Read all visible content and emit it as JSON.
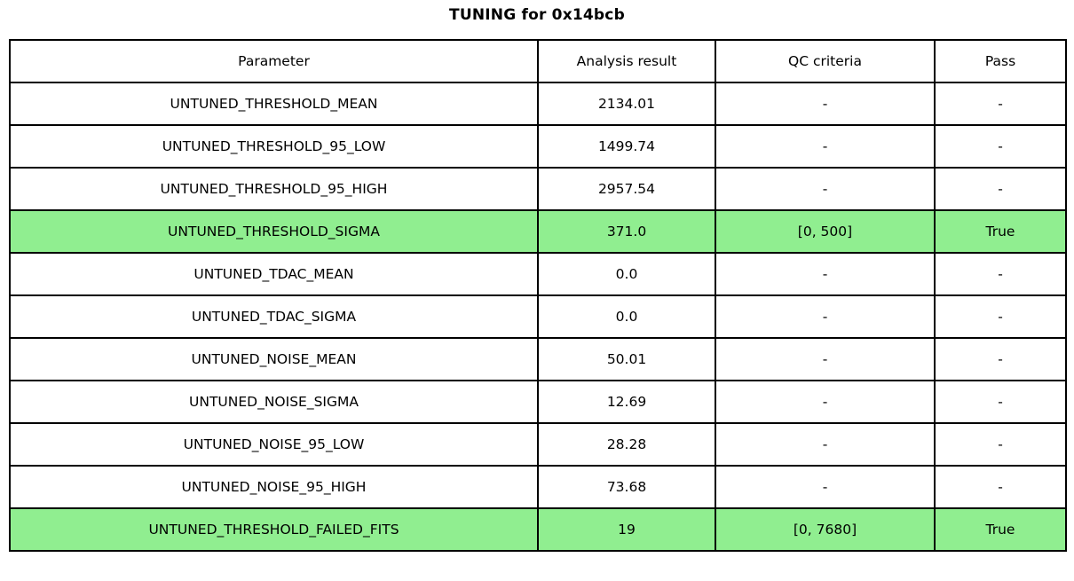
{
  "chart_data": {
    "type": "table",
    "title": "TUNING for 0x14bcb",
    "columns": [
      "Parameter",
      "Analysis result",
      "QC criteria",
      "Pass"
    ],
    "rows": [
      {
        "parameter": "UNTUNED_THRESHOLD_MEAN",
        "result": "2134.01",
        "qc": "-",
        "pass": "-",
        "highlighted": false
      },
      {
        "parameter": "UNTUNED_THRESHOLD_95_LOW",
        "result": "1499.74",
        "qc": "-",
        "pass": "-",
        "highlighted": false
      },
      {
        "parameter": "UNTUNED_THRESHOLD_95_HIGH",
        "result": "2957.54",
        "qc": "-",
        "pass": "-",
        "highlighted": false
      },
      {
        "parameter": "UNTUNED_THRESHOLD_SIGMA",
        "result": "371.0",
        "qc": "[0, 500]",
        "pass": "True",
        "highlighted": true
      },
      {
        "parameter": "UNTUNED_TDAC_MEAN",
        "result": "0.0",
        "qc": "-",
        "pass": "-",
        "highlighted": false
      },
      {
        "parameter": "UNTUNED_TDAC_SIGMA",
        "result": "0.0",
        "qc": "-",
        "pass": "-",
        "highlighted": false
      },
      {
        "parameter": "UNTUNED_NOISE_MEAN",
        "result": "50.01",
        "qc": "-",
        "pass": "-",
        "highlighted": false
      },
      {
        "parameter": "UNTUNED_NOISE_SIGMA",
        "result": "12.69",
        "qc": "-",
        "pass": "-",
        "highlighted": false
      },
      {
        "parameter": "UNTUNED_NOISE_95_LOW",
        "result": "28.28",
        "qc": "-",
        "pass": "-",
        "highlighted": false
      },
      {
        "parameter": "UNTUNED_NOISE_95_HIGH",
        "result": "73.68",
        "qc": "-",
        "pass": "-",
        "highlighted": false
      },
      {
        "parameter": "UNTUNED_THRESHOLD_FAILED_FITS",
        "result": "19",
        "qc": "[0, 7680]",
        "pass": "True",
        "highlighted": true
      }
    ],
    "highlight_color": "#90EE90",
    "border_color": "#000000",
    "background_color": "#ffffff",
    "legend": "none",
    "grid": "table-borders"
  }
}
